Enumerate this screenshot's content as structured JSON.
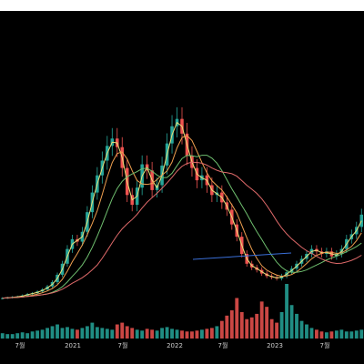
{
  "chart_data": {
    "type": "candlestick",
    "title": "",
    "x_tick_labels": [
      "7월",
      "2021",
      "7월",
      "2022",
      "7월",
      "2023",
      "7월"
    ],
    "colors": {
      "background": "#000000",
      "up": "#26a69a",
      "down": "#ef5350",
      "ma_short": "#e8e07a",
      "ma_mid1": "#f0a050",
      "ma_mid2": "#6fbf6f",
      "ma_long": "#e06a6a",
      "trendline": "#3a6fd8"
    },
    "price_series": [
      12.0,
      12.4,
      12.9,
      13.2,
      14.1,
      15.3,
      16.0,
      17.4,
      19.0,
      21.5,
      25.0,
      31.0,
      40.0,
      52.0,
      60.0,
      58.0,
      66.0,
      82.0,
      98.0,
      112.0,
      124.0,
      136.0,
      142.0,
      135.0,
      118.0,
      96.0,
      88.0,
      102.0,
      121.0,
      116.0,
      100.0,
      104.0,
      120.0,
      138.0,
      152.0,
      158.0,
      146.0,
      128.0,
      118.0,
      108.0,
      112.0,
      104.0,
      96.0,
      98.0,
      90.0,
      84.0,
      72.0,
      62.0,
      48.0,
      40.0,
      37.0,
      35.0,
      32.0,
      30.0,
      29.0,
      28.0,
      30.0,
      33.0,
      36.0,
      40.0,
      44.0,
      48.0,
      52.0,
      50.0,
      48.0,
      50.0,
      46.0,
      48.0,
      52.0,
      60.0,
      64.0,
      70.0,
      80.0
    ],
    "volume_series": [
      6,
      5,
      5,
      6,
      7,
      6,
      8,
      9,
      10,
      12,
      14,
      16,
      12,
      13,
      11,
      10,
      12,
      14,
      18,
      13,
      12,
      11,
      10,
      16,
      18,
      14,
      12,
      10,
      9,
      11,
      10,
      9,
      12,
      13,
      11,
      10,
      9,
      8,
      8,
      9,
      10,
      11,
      12,
      14,
      20,
      26,
      32,
      46,
      30,
      22,
      24,
      28,
      42,
      36,
      22,
      18,
      30,
      62,
      38,
      28,
      20,
      16,
      12,
      10,
      8,
      7,
      8,
      9,
      10,
      8,
      8,
      9,
      10
    ],
    "moving_averages": [
      {
        "period": 5
      },
      {
        "period": 20
      },
      {
        "period": 60
      },
      {
        "period": 120
      }
    ]
  }
}
